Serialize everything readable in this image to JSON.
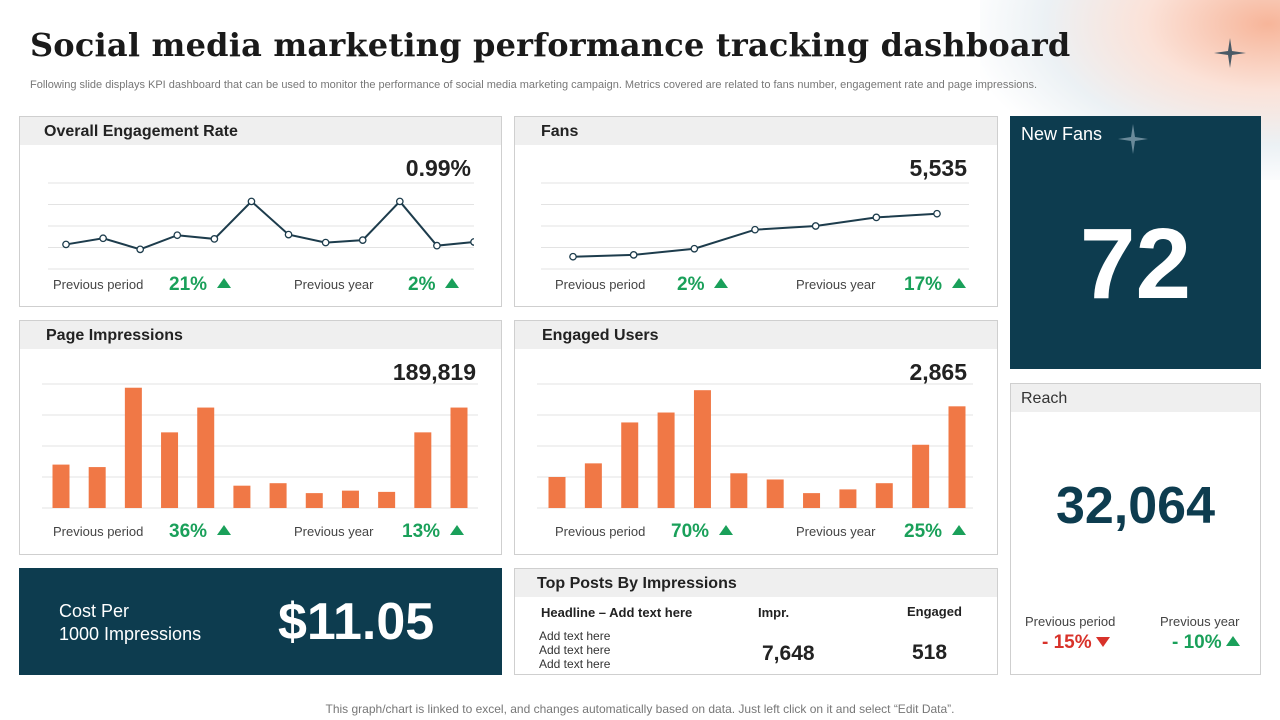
{
  "page": {
    "title": "Social media marketing performance tracking dashboard",
    "subtitle": "Following slide displays KPI dashboard that can be used to monitor the performance of social media marketing campaign. Metrics covered are related to fans number, engagement rate and page impressions.",
    "footnote": "This graph/chart is linked to excel,  and changes automatically based on data. Just left click on it and select “Edit Data”."
  },
  "colors": {
    "navy": "#0d3c4f",
    "orange": "#f07846",
    "green": "#1aa05a",
    "red": "#d8322a"
  },
  "engagement": {
    "title": "Overall  Engagement Rate",
    "value": "0.99%",
    "prev_period_label": "Previous  period",
    "prev_period_pct": "21%",
    "prev_year_label": "Previous  year",
    "prev_year_pct": "2%"
  },
  "fans": {
    "title": "Fans",
    "value": "5,535",
    "prev_period_label": "Previous  period",
    "prev_period_pct": "2%",
    "prev_year_label": "Previous  year",
    "prev_year_pct": "17%"
  },
  "impressions": {
    "title": "Page Impressions",
    "value": "189,819",
    "prev_period_label": "Previous  period",
    "prev_period_pct": "36%",
    "prev_year_label": "Previous  year",
    "prev_year_pct": "13%"
  },
  "engaged_users": {
    "title": "Engaged Users",
    "value": "2,865",
    "prev_period_label": "Previous  period",
    "prev_period_pct": "70%",
    "prev_year_label": "Previous  year",
    "prev_year_pct": "25%"
  },
  "new_fans": {
    "label": "New Fans",
    "value": "72"
  },
  "reach": {
    "title": "Reach",
    "value": "32,064",
    "prev_period_label": "Previous  period",
    "prev_period_pct": "- 15%",
    "prev_year_label": "Previous  year",
    "prev_year_pct": "- 10%"
  },
  "cost": {
    "label_line1": "Cost Per",
    "label_line2": "1000 Impressions",
    "value": "$11.05"
  },
  "top_posts": {
    "title": "Top Posts By Impressions",
    "col_headline": "Headline – Add text here",
    "col_impr": "Impr.",
    "col_engaged": "Engaged",
    "rows": [
      "Add text here",
      "Add text here",
      "Add text here"
    ],
    "impr_value": "7,648",
    "engaged_value": "518"
  },
  "chart_data": [
    {
      "type": "line",
      "name": "engagement",
      "title": "Overall  Engagement Rate",
      "x": [
        1,
        2,
        3,
        4,
        5,
        6,
        7,
        8,
        9,
        10,
        11,
        12
      ],
      "values": [
        4.0,
        5.0,
        3.2,
        5.5,
        4.9,
        11.0,
        5.6,
        4.3,
        4.7,
        11.0,
        3.8,
        4.4
      ],
      "ylim": [
        0,
        14
      ]
    },
    {
      "type": "line",
      "name": "fans",
      "title": "Fans",
      "x": [
        1,
        2,
        3,
        4,
        5,
        6,
        7
      ],
      "values": [
        2.0,
        2.3,
        3.3,
        6.4,
        7.0,
        8.4,
        9.0
      ],
      "ylim": [
        0,
        14
      ]
    },
    {
      "type": "bar",
      "name": "impressions",
      "title": "Page Impressions",
      "categories": [
        "1",
        "2",
        "3",
        "4",
        "5",
        "6",
        "7",
        "8",
        "9",
        "10",
        "11",
        "12"
      ],
      "values": [
        35,
        33,
        97,
        61,
        81,
        18,
        20,
        12,
        14,
        13,
        61,
        81
      ],
      "ylim": [
        0,
        100
      ]
    },
    {
      "type": "bar",
      "name": "engaged_users",
      "title": "Engaged Users",
      "categories": [
        "1",
        "2",
        "3",
        "4",
        "5",
        "6",
        "7",
        "8",
        "9",
        "10",
        "11",
        "12"
      ],
      "values": [
        25,
        36,
        69,
        77,
        95,
        28,
        23,
        12,
        15,
        20,
        51,
        82
      ],
      "ylim": [
        0,
        100
      ]
    }
  ]
}
